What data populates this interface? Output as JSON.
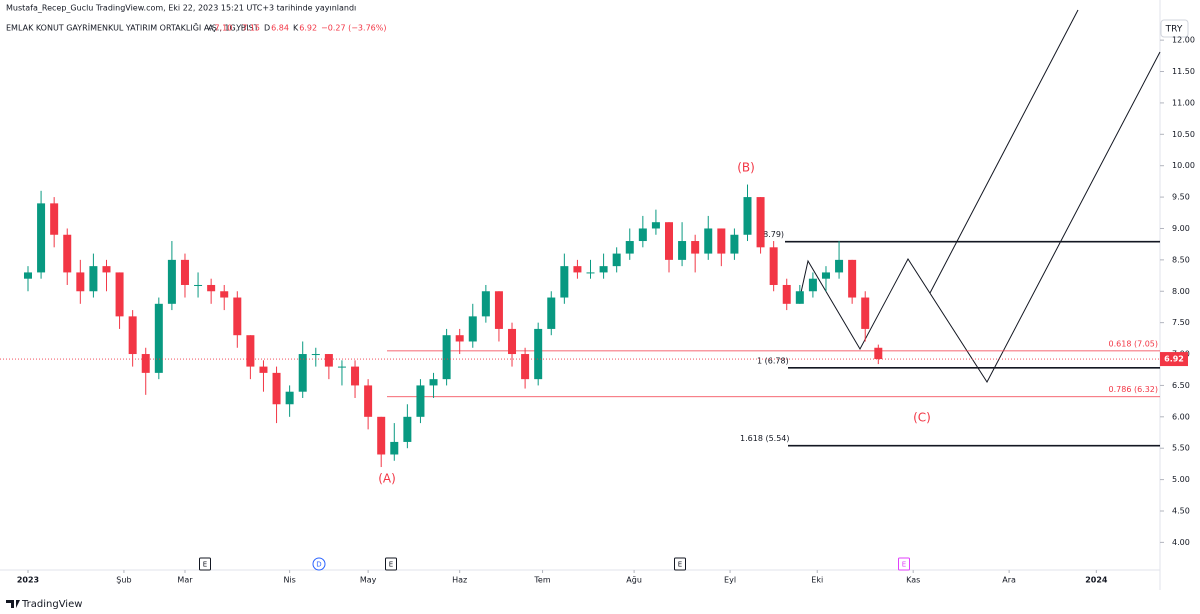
{
  "header": {
    "publisher": "Mustafa_Recep_Guclu TradingView.com, Eki 22, 2023 15:21 UTC+3 tarihinde yayınlandı",
    "symbol": "EMLAK KONUT GAYRİMENKUL YATIRIM ORTAKLIĞI A.Ş., 1G, BIST",
    "ohlc": [
      {
        "label": "A",
        "value": "7.10"
      },
      {
        "label": "Y",
        "value": "7.15"
      },
      {
        "label": "D",
        "value": "6.84"
      },
      {
        "label": "K",
        "value": "6.92"
      }
    ],
    "change": "−0.27 (−3.76%)",
    "currency": "TRY"
  },
  "footer": {
    "brand": "TradingView"
  },
  "chart_data": {
    "type": "candlestick",
    "x": [
      0,
      3,
      6,
      9,
      12,
      15,
      18,
      21,
      24,
      27,
      30,
      33,
      36,
      39,
      42,
      45,
      48,
      51,
      54,
      57,
      60,
      63,
      66,
      69,
      72,
      75,
      78,
      81,
      84,
      87,
      90,
      93,
      96,
      99,
      102,
      105,
      108,
      111,
      114,
      117,
      120,
      123,
      126,
      129,
      132,
      135,
      138,
      141,
      144,
      147,
      150,
      153,
      156,
      159,
      162,
      165,
      168,
      171,
      174,
      177,
      180,
      183,
      186,
      189,
      192,
      195
    ],
    "open": [
      8.2,
      8.3,
      9.4,
      8.9,
      8.3,
      8.0,
      8.4,
      8.3,
      7.6,
      7.0,
      6.7,
      7.8,
      8.5,
      8.1,
      8.1,
      8.0,
      7.9,
      7.3,
      6.8,
      6.7,
      6.2,
      6.4,
      7.0,
      7.0,
      6.8,
      6.8,
      6.5,
      6.0,
      5.4,
      5.6,
      6.0,
      6.5,
      6.6,
      7.3,
      7.2,
      7.6,
      8.0,
      7.4,
      7.0,
      6.6,
      7.4,
      7.9,
      8.4,
      8.3,
      8.3,
      8.4,
      8.6,
      8.8,
      9.0,
      9.1,
      8.5,
      8.8,
      8.6,
      9.0,
      8.6,
      8.9,
      9.5,
      8.7,
      8.1,
      7.8,
      8.0,
      8.2,
      8.3,
      8.5,
      7.9,
      7.1
    ],
    "high": [
      8.4,
      9.6,
      9.5,
      9.0,
      8.5,
      8.6,
      8.5,
      8.3,
      7.7,
      7.1,
      7.9,
      8.8,
      8.6,
      8.3,
      8.2,
      8.1,
      8.0,
      7.3,
      6.9,
      6.8,
      6.5,
      7.2,
      7.1,
      7.0,
      6.9,
      6.9,
      6.6,
      6.0,
      5.9,
      6.2,
      6.6,
      6.7,
      7.4,
      7.4,
      7.8,
      8.1,
      8.0,
      7.5,
      7.1,
      7.5,
      8.0,
      8.6,
      8.5,
      8.5,
      8.6,
      8.7,
      9.0,
      9.2,
      9.3,
      9.1,
      9.1,
      8.9,
      9.2,
      9.0,
      9.0,
      9.7,
      9.5,
      8.8,
      8.2,
      8.1,
      8.3,
      8.4,
      8.8,
      8.5,
      8.0,
      7.15
    ],
    "low": [
      8.0,
      8.2,
      8.7,
      8.1,
      7.8,
      7.9,
      8.0,
      7.4,
      6.8,
      6.35,
      6.6,
      7.7,
      7.9,
      7.9,
      7.8,
      7.7,
      7.1,
      6.6,
      6.4,
      5.9,
      6.0,
      6.3,
      6.8,
      6.6,
      6.5,
      6.3,
      5.8,
      5.2,
      5.3,
      5.5,
      5.9,
      6.3,
      6.5,
      7.0,
      7.1,
      7.5,
      7.2,
      6.8,
      6.45,
      6.5,
      7.3,
      7.8,
      8.2,
      8.2,
      8.2,
      8.3,
      8.5,
      8.7,
      8.9,
      8.3,
      8.4,
      8.3,
      8.5,
      8.4,
      8.5,
      8.8,
      8.6,
      8.0,
      7.7,
      7.8,
      7.9,
      8.0,
      8.2,
      7.8,
      7.2,
      6.84
    ],
    "close": [
      8.3,
      9.4,
      8.9,
      8.3,
      8.0,
      8.4,
      8.3,
      7.6,
      7.0,
      6.7,
      7.8,
      8.5,
      8.1,
      8.1,
      8.0,
      7.9,
      7.3,
      6.8,
      6.7,
      6.2,
      6.4,
      7.0,
      7.0,
      6.8,
      6.8,
      6.5,
      6.0,
      5.4,
      5.6,
      6.0,
      6.5,
      6.6,
      7.3,
      7.2,
      7.6,
      8.0,
      7.4,
      7.0,
      6.6,
      7.4,
      7.9,
      8.4,
      8.3,
      8.3,
      8.4,
      8.6,
      8.8,
      9.0,
      9.1,
      8.5,
      8.8,
      8.6,
      9.0,
      8.6,
      8.9,
      9.5,
      8.7,
      8.1,
      7.8,
      8.0,
      8.2,
      8.3,
      8.5,
      7.9,
      7.4,
      6.92
    ],
    "up_color": "#089981",
    "down_color": "#f23645",
    "xlim": [
      -6.42,
      259.6
    ],
    "xticks": [
      {
        "value": 0,
        "label": "2023"
      },
      {
        "value": 22,
        "label": "Şub"
      },
      {
        "value": 36,
        "label": "Mar"
      },
      {
        "value": 60,
        "label": "Nis"
      },
      {
        "value": 78,
        "label": "May"
      },
      {
        "value": 99,
        "label": "Haz"
      },
      {
        "value": 118,
        "label": "Tem"
      },
      {
        "value": 139,
        "label": "Ağu"
      },
      {
        "value": 161,
        "label": "Eyl"
      },
      {
        "value": 181,
        "label": "Eki"
      },
      {
        "value": 203,
        "label": "Kas"
      },
      {
        "value": 225,
        "label": "Ara"
      },
      {
        "value": 245,
        "label": "2024"
      }
    ],
    "ylim": [
      3.56,
      12.48
    ],
    "yticks": [
      {
        "value": 4,
        "label": "4.00"
      },
      {
        "value": 4.5,
        "label": "4.50"
      },
      {
        "value": 5,
        "label": "5.00"
      },
      {
        "value": 5.5,
        "label": "5.50"
      },
      {
        "value": 6,
        "label": "6.00"
      },
      {
        "value": 6.5,
        "label": "6.50"
      },
      {
        "value": 7,
        "label": "7.00"
      },
      {
        "value": 7.5,
        "label": "7.50"
      },
      {
        "value": 8,
        "label": "8.00"
      },
      {
        "value": 8.5,
        "label": "8.50"
      },
      {
        "value": 9,
        "label": "9.00"
      },
      {
        "value": 9.5,
        "label": "9.50"
      },
      {
        "value": 10,
        "label": "10.00"
      },
      {
        "value": 10.5,
        "label": "10.50"
      },
      {
        "value": 11,
        "label": "11.00"
      },
      {
        "value": 11.5,
        "label": "11.50"
      },
      {
        "value": 12,
        "label": "12.00"
      }
    ],
    "levels": [
      {
        "label": "(8.79)",
        "value": 8.79,
        "color": "#131722"
      },
      {
        "label": "0.618 (7.05)",
        "value": 7.05,
        "color": "#f23645"
      },
      {
        "label": "1 (6.78)",
        "value": 6.78,
        "color": "#131722"
      },
      {
        "label": "0.786 (6.32)",
        "value": 6.32,
        "color": "#f23645"
      },
      {
        "label": "1.618 (5.54)",
        "value": 5.54,
        "color": "#131722"
      }
    ],
    "wave_labels": [
      "(A)",
      "(B)",
      "(C)"
    ],
    "events": [
      "E",
      "D",
      "E",
      "E",
      "E"
    ]
  }
}
